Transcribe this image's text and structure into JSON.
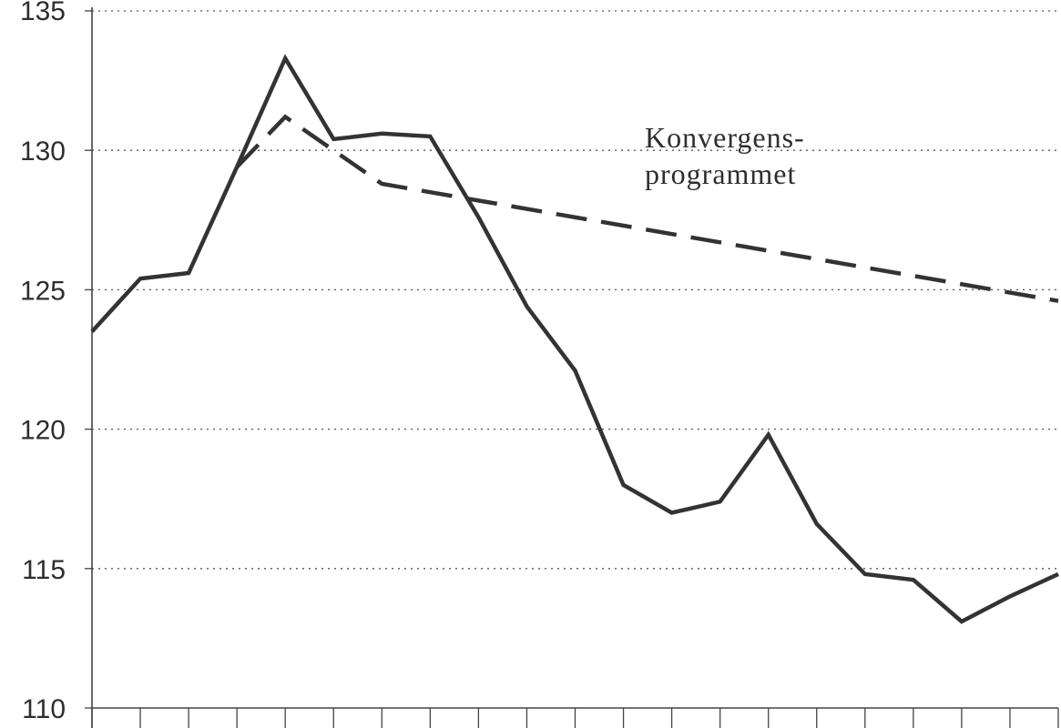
{
  "chart_data": {
    "type": "line",
    "title": "",
    "xlabel": "",
    "ylabel": "",
    "ylim": [
      110,
      135
    ],
    "yticks": [
      110,
      115,
      120,
      125,
      130,
      135
    ],
    "ytick_labels": [
      "110",
      "115",
      "120",
      "125",
      "130",
      "135"
    ],
    "x_count": 21,
    "grid": "horizontal-dotted",
    "series": [
      {
        "style": "solid",
        "color": "#333333",
        "values": [
          123.5,
          125.4,
          125.6,
          129.4,
          133.3,
          130.4,
          130.6,
          130.5,
          127.6,
          124.4,
          122.1,
          118.0,
          117.0,
          117.4,
          119.8,
          116.6,
          114.8,
          114.6,
          113.1,
          114.0,
          114.8
        ]
      },
      {
        "style": "dashed",
        "color": "#333333",
        "values": [
          null,
          null,
          null,
          129.4,
          131.2,
          null,
          128.8,
          null,
          null,
          null,
          null,
          null,
          null,
          null,
          null,
          null,
          null,
          null,
          null,
          null,
          124.6
        ]
      }
    ],
    "annotation": {
      "lines": [
        "Konvergens-",
        "programmet"
      ]
    }
  }
}
